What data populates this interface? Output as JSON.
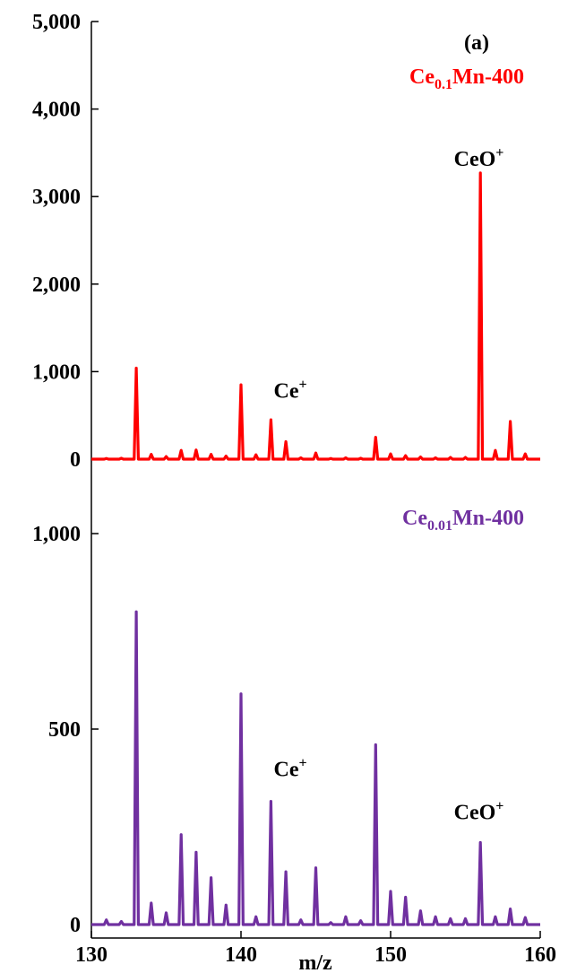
{
  "chart_data": [
    {
      "type": "line",
      "panel_label": "(a)",
      "series_name_parts": {
        "base": "Ce",
        "sub": "0.1",
        "rest": "Mn-400"
      },
      "color": "#ff0000",
      "ylim": [
        0,
        5000
      ],
      "yticks": [
        0,
        1000,
        2000,
        3000,
        4000,
        5000
      ],
      "ytick_labels": [
        "0",
        "1,000",
        "2,000",
        "3,000",
        "4,000",
        "5,000"
      ],
      "annotations": [
        {
          "base": "Ce",
          "sup": "+",
          "x": 143.3,
          "y": 700
        },
        {
          "base": "CeO",
          "sup": "+",
          "x": 155.9,
          "y": 3350
        }
      ],
      "peaks": [
        {
          "x": 131,
          "y": 8
        },
        {
          "x": 132,
          "y": 10
        },
        {
          "x": 133,
          "y": 1040
        },
        {
          "x": 134,
          "y": 55
        },
        {
          "x": 135,
          "y": 30
        },
        {
          "x": 136,
          "y": 100
        },
        {
          "x": 137,
          "y": 105
        },
        {
          "x": 138,
          "y": 55
        },
        {
          "x": 139,
          "y": 35
        },
        {
          "x": 140,
          "y": 850
        },
        {
          "x": 141,
          "y": 50
        },
        {
          "x": 142,
          "y": 450
        },
        {
          "x": 143,
          "y": 200
        },
        {
          "x": 144,
          "y": 15
        },
        {
          "x": 145,
          "y": 70
        },
        {
          "x": 146,
          "y": 8
        },
        {
          "x": 147,
          "y": 15
        },
        {
          "x": 148,
          "y": 10
        },
        {
          "x": 149,
          "y": 250
        },
        {
          "x": 150,
          "y": 60
        },
        {
          "x": 151,
          "y": 40
        },
        {
          "x": 152,
          "y": 25
        },
        {
          "x": 153,
          "y": 15
        },
        {
          "x": 154,
          "y": 20
        },
        {
          "x": 155,
          "y": 20
        },
        {
          "x": 156,
          "y": 3270
        },
        {
          "x": 157,
          "y": 100
        },
        {
          "x": 158,
          "y": 430
        },
        {
          "x": 159,
          "y": 60
        }
      ]
    },
    {
      "type": "line",
      "series_name_parts": {
        "base": "Ce",
        "sub": "0.01",
        "rest": "Mn-400"
      },
      "color": "#7030a0",
      "ylim": [
        0,
        1200
      ],
      "yticks": [
        0,
        500,
        1000
      ],
      "ytick_labels": [
        "0",
        "500",
        "1,000"
      ],
      "xlim": [
        130,
        160
      ],
      "xticks": [
        130,
        140,
        150,
        160
      ],
      "xtick_labels": [
        "130",
        "140",
        "150",
        "160"
      ],
      "xlabel": "m/z",
      "annotations": [
        {
          "base": "Ce",
          "sup": "+",
          "x": 143.3,
          "y": 380
        },
        {
          "base": "CeO",
          "sup": "+",
          "x": 155.9,
          "y": 270
        }
      ],
      "peaks": [
        {
          "x": 131,
          "y": 12
        },
        {
          "x": 132,
          "y": 8
        },
        {
          "x": 133,
          "y": 800
        },
        {
          "x": 134,
          "y": 55
        },
        {
          "x": 135,
          "y": 30
        },
        {
          "x": 136,
          "y": 230
        },
        {
          "x": 137,
          "y": 185
        },
        {
          "x": 138,
          "y": 120
        },
        {
          "x": 139,
          "y": 50
        },
        {
          "x": 140,
          "y": 590
        },
        {
          "x": 141,
          "y": 20
        },
        {
          "x": 142,
          "y": 315
        },
        {
          "x": 143,
          "y": 135
        },
        {
          "x": 144,
          "y": 12
        },
        {
          "x": 145,
          "y": 145
        },
        {
          "x": 146,
          "y": 5
        },
        {
          "x": 147,
          "y": 20
        },
        {
          "x": 148,
          "y": 10
        },
        {
          "x": 149,
          "y": 460
        },
        {
          "x": 150,
          "y": 85
        },
        {
          "x": 151,
          "y": 70
        },
        {
          "x": 152,
          "y": 35
        },
        {
          "x": 153,
          "y": 20
        },
        {
          "x": 154,
          "y": 15
        },
        {
          "x": 155,
          "y": 15
        },
        {
          "x": 156,
          "y": 210
        },
        {
          "x": 157,
          "y": 20
        },
        {
          "x": 158,
          "y": 40
        },
        {
          "x": 159,
          "y": 18
        }
      ]
    }
  ]
}
